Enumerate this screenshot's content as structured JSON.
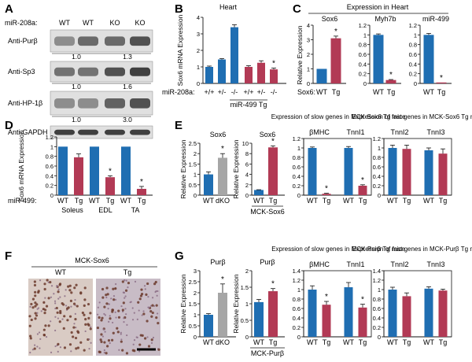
{
  "colors": {
    "blue": "#1f6eb2",
    "red": "#b23a55",
    "gray": "#a6a6a6",
    "ink": "#111111"
  },
  "panels": {
    "A": {
      "label": "A",
      "header": "miR-208a:",
      "lanes": [
        "WT",
        "WT",
        "KO",
        "KO"
      ],
      "blots": [
        {
          "name": "Anti-Purβ",
          "ratios": [
            "1.0",
            "1.3"
          ]
        },
        {
          "name": "Anti-Sp3",
          "ratios": [
            "1.0",
            "1.6"
          ]
        },
        {
          "name": "Anti-HP-1β",
          "ratios": [
            "1.0",
            "3.0"
          ]
        },
        {
          "name": "Anti-GAPDH",
          "ratios": []
        }
      ]
    },
    "B": {
      "label": "B",
      "title": "Heart",
      "row_label": "miR-208a:",
      "genotypes": [
        "+/+",
        "+/-",
        "-/-",
        "+/+",
        "+/-",
        "-/-"
      ],
      "group_label": "miR-499 Tg"
    },
    "C": {
      "label": "C",
      "title": "Expression in Heart",
      "row_label": "Sox6:",
      "xlabels": [
        "WT",
        "Tg"
      ]
    },
    "D": {
      "label": "D",
      "row_label": "miR-499:",
      "xlabels": [
        "WT",
        "Tg"
      ],
      "muscles": [
        "Soleus",
        "EDL",
        "TA"
      ]
    },
    "E": {
      "label": "E",
      "group1": "MCK-Sox6",
      "header_slow": "Expression of slow genes in MCK-Sox6 Tg mice",
      "header_fast": "Expression of fast genes in MCK-Sox6 Tg mice"
    },
    "F": {
      "label": "F",
      "title": "MCK-Sox6",
      "left": "WT",
      "right": "Tg"
    },
    "G": {
      "label": "G",
      "group1": "MCK-Purβ",
      "header_slow": "Expression of slow genes in MCK-Purβ Tg mice",
      "header_fast": "Expression of fast genes in MCK-Purβ Tg mice"
    }
  },
  "chart_data": [
    {
      "panel": "B",
      "type": "bar",
      "title": "Heart",
      "ylabel": "Sox6 mRNA Expression",
      "ylim": [
        0,
        4
      ],
      "yticks": [
        0,
        1,
        2,
        3,
        4
      ],
      "categories": [
        "+/+",
        "+/-",
        "-/-",
        "+/+",
        "+/-",
        "-/-"
      ],
      "values": [
        1.0,
        1.45,
        3.4,
        1.0,
        1.25,
        0.85
      ],
      "errors": [
        0.05,
        0.05,
        0.15,
        0.07,
        0.12,
        0.08
      ],
      "colors": [
        "blue",
        "blue",
        "blue",
        "red",
        "red",
        "red"
      ],
      "stars": [
        5
      ]
    },
    {
      "panel": "C",
      "type": "bar",
      "title": "Sox6",
      "ylabel": "Relative Expression",
      "ylim": [
        0,
        4
      ],
      "yticks": [
        0,
        1,
        2,
        3,
        4
      ],
      "categories": [
        "WT",
        "Tg"
      ],
      "values": [
        1.0,
        3.1
      ],
      "errors": [
        0,
        0.15
      ],
      "colors": [
        "blue",
        "red"
      ],
      "stars": [
        1
      ]
    },
    {
      "panel": "C",
      "type": "bar",
      "title": "Myh7b",
      "ylim": [
        0,
        1.2
      ],
      "yticks": [
        0,
        0.2,
        0.4,
        0.6,
        0.8,
        1.0,
        1.2
      ],
      "categories": [
        "WT",
        "Tg"
      ],
      "values": [
        1.0,
        0.07
      ],
      "errors": [
        0.02,
        0.01
      ],
      "colors": [
        "blue",
        "red"
      ],
      "stars": [
        1
      ]
    },
    {
      "panel": "C",
      "type": "bar",
      "title": "miR-499",
      "ylim": [
        0,
        1.2
      ],
      "yticks": [
        0,
        0.2,
        0.4,
        0.6,
        0.8,
        1.0,
        1.2
      ],
      "categories": [
        "WT",
        "Tg"
      ],
      "values": [
        1.0,
        0.02
      ],
      "errors": [
        0.03,
        0
      ],
      "colors": [
        "blue",
        "red"
      ],
      "stars": [
        1
      ]
    },
    {
      "panel": "D",
      "type": "bar",
      "ylabel": "Sox6 mRNA Expression",
      "ylim": [
        0,
        1.2
      ],
      "yticks": [
        0,
        0.2,
        0.4,
        0.6,
        0.8,
        1.0,
        1.2
      ],
      "categories": [
        "WT",
        "Tg",
        "WT",
        "Tg",
        "WT",
        "Tg"
      ],
      "values": [
        1.0,
        0.78,
        1.0,
        0.37,
        1.0,
        0.13
      ],
      "errors": [
        0,
        0.07,
        0,
        0.03,
        0,
        0.05
      ],
      "colors": [
        "blue",
        "red",
        "blue",
        "red",
        "blue",
        "red"
      ],
      "stars": [
        3,
        5
      ]
    },
    {
      "panel": "E",
      "type": "bar",
      "title": "Sox6",
      "ylabel": "Relative Expression",
      "ylim": [
        0,
        2.5
      ],
      "yticks": [
        0,
        0.5,
        1.0,
        1.5,
        2.0,
        2.5
      ],
      "categories": [
        "WT",
        "dKO"
      ],
      "values": [
        1.0,
        1.8
      ],
      "errors": [
        0.12,
        0.2
      ],
      "colors": [
        "blue",
        "gray"
      ],
      "stars": [
        1
      ]
    },
    {
      "panel": "E",
      "type": "bar",
      "title": "Sox6",
      "ylabel": "Relative Expression",
      "ylim": [
        0,
        10
      ],
      "yticks": [
        0,
        2,
        4,
        6,
        8,
        10
      ],
      "categories": [
        "WT",
        "Tg"
      ],
      "values": [
        1.0,
        9.2
      ],
      "errors": [
        0.05,
        0.3
      ],
      "colors": [
        "blue",
        "red"
      ],
      "stars": [
        1
      ]
    },
    {
      "panel": "E",
      "type": "bar",
      "groups": [
        "βMHC",
        "TnnI1"
      ],
      "ylim": [
        0,
        1.2
      ],
      "yticks": [
        0,
        0.2,
        0.4,
        0.6,
        0.8,
        1.0,
        1.2
      ],
      "categories": [
        "WT",
        "Tg",
        "WT",
        "Tg"
      ],
      "values": [
        1.0,
        0.03,
        1.0,
        0.2
      ],
      "errors": [
        0.02,
        0.01,
        0.03,
        0.02
      ],
      "colors": [
        "blue",
        "red",
        "blue",
        "red"
      ],
      "stars": [
        1,
        3
      ]
    },
    {
      "panel": "E",
      "type": "bar",
      "groups": [
        "TnnI2",
        "TnnI3"
      ],
      "ylim": [
        0,
        1.2
      ],
      "yticks": [
        0,
        0.2,
        0.4,
        0.6,
        0.8,
        1.0,
        1.2
      ],
      "categories": [
        "WT",
        "Tg",
        "WT",
        "Tg"
      ],
      "values": [
        1.0,
        0.98,
        0.95,
        0.88
      ],
      "errors": [
        0.06,
        0.08,
        0.05,
        0.1
      ],
      "colors": [
        "blue",
        "red",
        "blue",
        "red"
      ],
      "stars": []
    },
    {
      "panel": "G",
      "type": "bar",
      "title": "Purβ",
      "ylabel": "Relative Expression",
      "ylim": [
        0,
        3
      ],
      "yticks": [
        0,
        0.5,
        1.0,
        1.5,
        2.0,
        2.5,
        3.0
      ],
      "categories": [
        "WT",
        "dKO"
      ],
      "values": [
        1.0,
        2.0
      ],
      "errors": [
        0.05,
        0.4
      ],
      "colors": [
        "blue",
        "gray"
      ],
      "stars": [
        1
      ]
    },
    {
      "panel": "G",
      "type": "bar",
      "title": "Purβ",
      "ylabel": "Relative Expression",
      "ylim": [
        0,
        2
      ],
      "yticks": [
        0,
        0.5,
        1.0,
        1.5,
        2.0
      ],
      "categories": [
        "WT",
        "Tg"
      ],
      "values": [
        1.05,
        1.38
      ],
      "errors": [
        0.08,
        0.08
      ],
      "colors": [
        "blue",
        "red"
      ],
      "stars": [
        1
      ]
    },
    {
      "panel": "G",
      "type": "bar",
      "groups": [
        "βMHC",
        "TnnI1"
      ],
      "ylim": [
        0,
        1.4
      ],
      "yticks": [
        0,
        0.2,
        0.4,
        0.6,
        0.8,
        1.0,
        1.2,
        1.4
      ],
      "categories": [
        "WT",
        "Tg",
        "WT",
        "Tg"
      ],
      "values": [
        1.0,
        0.68,
        1.05,
        0.62
      ],
      "errors": [
        0.08,
        0.07,
        0.1,
        0.07
      ],
      "colors": [
        "blue",
        "red",
        "blue",
        "red"
      ],
      "stars": [
        1,
        3
      ]
    },
    {
      "panel": "G",
      "type": "bar",
      "groups": [
        "TnnI2",
        "TnnI3"
      ],
      "ylim": [
        0,
        1.4
      ],
      "yticks": [
        0,
        0.2,
        0.4,
        0.6,
        0.8,
        1.0,
        1.2,
        1.4
      ],
      "categories": [
        "WT",
        "Tg",
        "WT",
        "Tg"
      ],
      "values": [
        1.0,
        0.86,
        1.02,
        0.98
      ],
      "errors": [
        0.05,
        0.07,
        0.04,
        0.03
      ],
      "colors": [
        "blue",
        "red",
        "blue",
        "red"
      ],
      "stars": []
    }
  ]
}
